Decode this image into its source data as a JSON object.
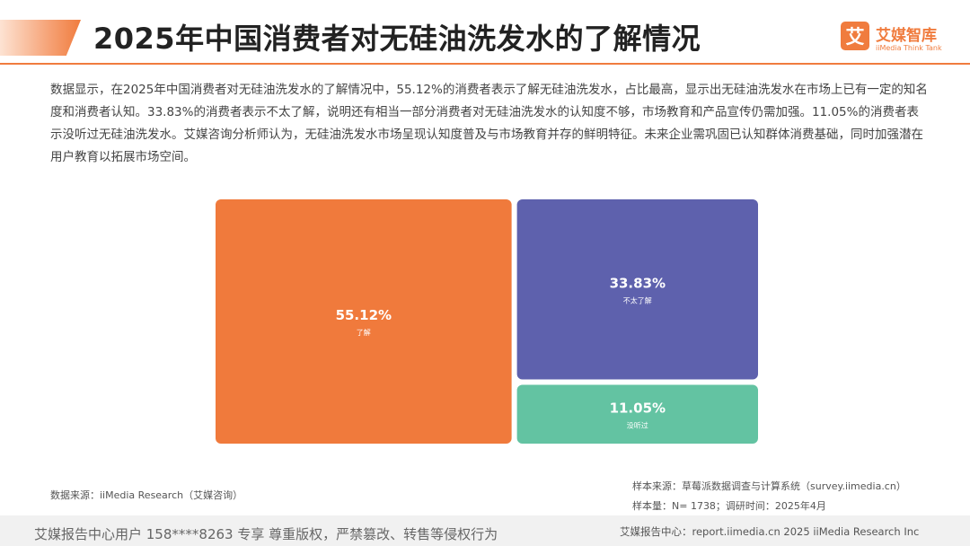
{
  "header": {
    "title": "2025年中国消费者对无硅油洗发水的了解情况",
    "logo_box": "艾",
    "logo_name": "艾媒智库",
    "logo_sub": "iiMedia Think Tank",
    "accent_color": "#f07c3e"
  },
  "description": "数据显示，在2025年中国消费者对无硅油洗发水的了解情况中，55.12%的消费者表示了解无硅油洗发水，占比最高，显示出无硅油洗发水在市场上已有一定的知名度和消费者认知。33.83%的消费者表示不太了解，说明还有相当一部分消费者对无硅油洗发水的认知度不够，市场教育和产品宣传仍需加强。11.05%的消费者表示没听过无硅油洗发水。艾媒咨询分析师认为，无硅油洗发水市场呈现认知度普及与市场教育并存的鲜明特征。未来企业需巩固已认知群体消费基础，同时加强潜在用户教育以拓展市场空间。",
  "chart_data": {
    "type": "treemap",
    "categories": [
      "了解",
      "不太了解",
      "没听过"
    ],
    "values": [
      55.12,
      33.83,
      11.05
    ],
    "labels": [
      "55.12%",
      "33.83%",
      "11.05%"
    ],
    "colors": [
      "#f07a3c",
      "#5e61ad",
      "#63c3a2"
    ],
    "unit": "%"
  },
  "sources": {
    "data_source": "数据来源：iiMedia Research（艾媒咨询）",
    "sample_source": "样本来源：草莓派数据调查与计算系统（survey.iimedia.cn）",
    "sample_size": "样本量：N= 1738；调研时间：2025年4月"
  },
  "footer": {
    "left": "艾媒报告中心用户 158****8263 专享 尊重版权，严禁篡改、转售等侵权行为",
    "right": "艾媒报告中心：report.iimedia.cn  2025 iiMedia Research Inc"
  }
}
